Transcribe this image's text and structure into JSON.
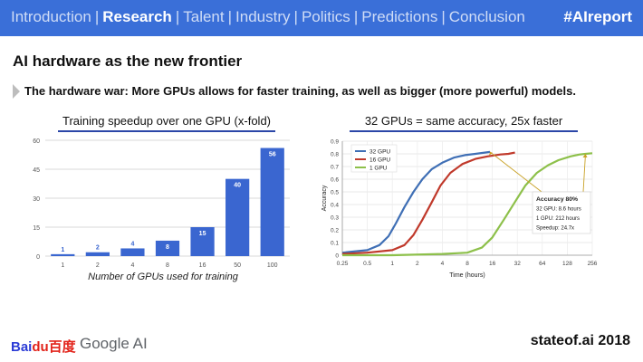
{
  "nav": {
    "items": [
      "Introduction",
      "Research",
      "Talent",
      "Industry",
      "Politics",
      "Predictions",
      "Conclusion"
    ],
    "active": "Research",
    "separator": "|",
    "hashtag": "#AIreport"
  },
  "slide": {
    "title": "AI hardware as the new frontier",
    "subtitle": "The hardware war: More GPUs allows for faster training, as well as bigger (more powerful) models."
  },
  "chart_data": [
    {
      "type": "bar",
      "title": "Training speedup over one GPU (x-fold)",
      "xlabel": "Number of GPUs used for training",
      "ylabel": "",
      "categories": [
        "1",
        "2",
        "4",
        "8",
        "16",
        "50",
        "100"
      ],
      "values": [
        1,
        2,
        4,
        8,
        15,
        40,
        56
      ],
      "ylim": [
        0,
        60
      ],
      "yticks": [
        "0",
        "15",
        "30",
        "45",
        "60"
      ],
      "bar_color": "#3a66d0",
      "grid": true
    },
    {
      "type": "line",
      "title": "32 GPUs = same accuracy, 25x faster",
      "xlabel": "Time (hours)",
      "ylabel": "Accuracy",
      "x_scale": "log2",
      "xticks": [
        "0.25",
        "0.5",
        "1",
        "2",
        "4",
        "8",
        "16",
        "32",
        "64",
        "128",
        "256"
      ],
      "yticks": [
        "0",
        "0.1",
        "0.2",
        "0.3",
        "0.4",
        "0.5",
        "0.6",
        "0.7",
        "0.8",
        "0.9"
      ],
      "xlim": [
        0.25,
        256
      ],
      "ylim": [
        0,
        0.9
      ],
      "legend_position": "top-left",
      "series": [
        {
          "name": "32 GPU",
          "color": "#3f6fb5",
          "x": [
            0.25,
            0.5,
            0.7,
            0.9,
            1.1,
            1.4,
            1.8,
            2.3,
            3,
            4,
            5.5,
            7.5,
            10,
            13,
            15
          ],
          "y": [
            0.02,
            0.04,
            0.08,
            0.15,
            0.25,
            0.38,
            0.5,
            0.6,
            0.68,
            0.73,
            0.77,
            0.79,
            0.8,
            0.81,
            0.815
          ]
        },
        {
          "name": "16 GPU",
          "color": "#c0392b",
          "x": [
            0.25,
            0.5,
            1,
            1.4,
            1.8,
            2.3,
            3,
            3.8,
            5,
            7,
            10,
            14,
            20,
            25,
            30
          ],
          "y": [
            0.01,
            0.02,
            0.04,
            0.08,
            0.16,
            0.28,
            0.42,
            0.55,
            0.65,
            0.72,
            0.76,
            0.78,
            0.795,
            0.8,
            0.81
          ]
        },
        {
          "name": "1 GPU",
          "color": "#8dc04a",
          "x": [
            0.25,
            1,
            4,
            8,
            12,
            16,
            22,
            30,
            40,
            55,
            75,
            100,
            140,
            180,
            212,
            256
          ],
          "y": [
            0.0,
            0.0,
            0.01,
            0.02,
            0.06,
            0.14,
            0.28,
            0.42,
            0.55,
            0.65,
            0.71,
            0.75,
            0.78,
            0.795,
            0.8,
            0.805
          ]
        }
      ],
      "annotation": {
        "lines": [
          "Accuracy 80%",
          "32 GPU: 8.6 hours",
          "1 GPU: 212 hours",
          "Speedup: 24.7x"
        ],
        "color": "#c9a227"
      }
    }
  ],
  "footer": {
    "baidu_part1": "Bai",
    "baidu_part2": "du",
    "baidu_cn": "百度",
    "google": "Google AI",
    "site": "stateof.ai 2018"
  }
}
